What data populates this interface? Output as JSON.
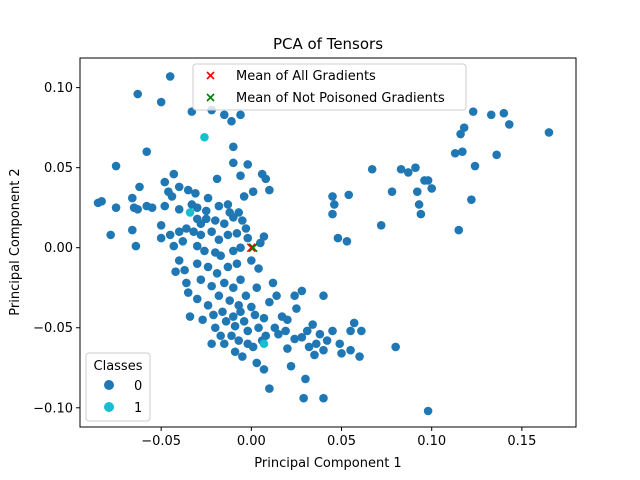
{
  "chart_data": {
    "type": "scatter",
    "title": "PCA of Tensors",
    "xlabel": "Principal Component 1",
    "ylabel": "Principal Component 2",
    "xlim": [
      -0.095,
      0.18
    ],
    "ylim": [
      -0.112,
      0.1185
    ],
    "xticks": [
      -0.05,
      0.0,
      0.05,
      0.1,
      0.15
    ],
    "xtick_labels": [
      "−0.05",
      "0.00",
      "0.05",
      "0.10",
      "0.15"
    ],
    "yticks": [
      -0.1,
      -0.05,
      0.0,
      0.05,
      0.1
    ],
    "ytick_labels": [
      "−0.10",
      "−0.05",
      "0.00",
      "0.05",
      "0.10"
    ],
    "grid": false,
    "colors": {
      "class0": "#1f77b4",
      "class1": "#17becf",
      "mean_all": "#ff0000",
      "mean_not_poisoned": "#008000"
    },
    "series": [
      {
        "name": "0",
        "points": [
          [
            -0.045,
            0.107
          ],
          [
            -0.063,
            0.096
          ],
          [
            -0.05,
            0.091
          ],
          [
            -0.033,
            0.085
          ],
          [
            -0.022,
            0.086
          ],
          [
            -0.015,
            0.083
          ],
          [
            -0.006,
            0.083
          ],
          [
            -0.011,
            0.079
          ],
          [
            -0.058,
            0.06
          ],
          [
            -0.01,
            0.063
          ],
          [
            -0.01,
            0.053
          ],
          [
            -0.002,
            0.052
          ],
          [
            -0.006,
            0.045
          ],
          [
            0.006,
            0.046
          ],
          [
            0.008,
            0.043
          ],
          [
            0.01,
            0.036
          ],
          [
            -0.019,
            0.043
          ],
          [
            -0.075,
            0.051
          ],
          [
            -0.062,
            0.038
          ],
          [
            -0.066,
            0.031
          ],
          [
            -0.048,
            0.041
          ],
          [
            -0.043,
            0.046
          ],
          [
            -0.046,
            0.035
          ],
          [
            -0.044,
            0.032
          ],
          [
            -0.035,
            0.036
          ],
          [
            -0.031,
            0.034
          ],
          [
            -0.04,
            0.038
          ],
          [
            -0.024,
            0.031
          ],
          [
            -0.013,
            0.027
          ],
          [
            -0.004,
            0.032
          ],
          [
            0.001,
            0.035
          ],
          [
            -0.085,
            0.028
          ],
          [
            -0.083,
            0.029
          ],
          [
            -0.065,
            0.025
          ],
          [
            -0.058,
            0.026
          ],
          [
            -0.063,
            0.024
          ],
          [
            -0.055,
            0.025
          ],
          [
            -0.075,
            0.025
          ],
          [
            -0.048,
            0.026
          ],
          [
            -0.04,
            0.024
          ],
          [
            -0.033,
            0.027
          ],
          [
            -0.03,
            0.025
          ],
          [
            -0.025,
            0.023
          ],
          [
            -0.018,
            0.026
          ],
          [
            -0.012,
            0.022
          ],
          [
            -0.007,
            0.022
          ],
          [
            -0.03,
            0.018
          ],
          [
            -0.028,
            0.015
          ],
          [
            -0.025,
            0.018
          ],
          [
            -0.02,
            0.017
          ],
          [
            -0.015,
            0.015
          ],
          [
            -0.01,
            0.019
          ],
          [
            -0.005,
            0.017
          ],
          [
            -0.003,
            0.012
          ],
          [
            -0.036,
            0.012
          ],
          [
            -0.032,
            0.01
          ],
          [
            -0.028,
            0.008
          ],
          [
            -0.022,
            0.01
          ],
          [
            -0.018,
            0.005
          ],
          [
            -0.013,
            0.008
          ],
          [
            -0.008,
            0.009
          ],
          [
            -0.002,
            0.006
          ],
          [
            -0.05,
            0.014
          ],
          [
            -0.045,
            0.008
          ],
          [
            -0.05,
            0.006
          ],
          [
            -0.04,
            0.01
          ],
          [
            -0.038,
            0.004
          ],
          [
            -0.043,
            0.001
          ],
          [
            -0.066,
            0.011
          ],
          [
            -0.078,
            0.008
          ],
          [
            -0.064,
            0.001
          ],
          [
            -0.03,
            0.001
          ],
          [
            -0.026,
            -0.002
          ],
          [
            -0.02,
            -0.003
          ],
          [
            -0.017,
            -0.005
          ],
          [
            -0.01,
            -0.002
          ],
          [
            -0.006,
            0.0
          ],
          [
            0.005,
            0.003
          ],
          [
            0.007,
            0.007
          ],
          [
            -0.04,
            -0.008
          ],
          [
            -0.037,
            -0.014
          ],
          [
            -0.03,
            -0.01
          ],
          [
            -0.024,
            -0.012
          ],
          [
            -0.019,
            -0.016
          ],
          [
            -0.013,
            -0.012
          ],
          [
            -0.008,
            -0.01
          ],
          [
            0.0,
            -0.008
          ],
          [
            -0.042,
            -0.015
          ],
          [
            -0.036,
            -0.022
          ],
          [
            -0.028,
            -0.02
          ],
          [
            -0.022,
            -0.024
          ],
          [
            -0.015,
            -0.022
          ],
          [
            -0.01,
            -0.025
          ],
          [
            -0.006,
            -0.02
          ],
          [
            0.004,
            -0.013
          ],
          [
            -0.035,
            -0.028
          ],
          [
            -0.03,
            -0.032
          ],
          [
            -0.024,
            -0.036
          ],
          [
            -0.018,
            -0.03
          ],
          [
            -0.012,
            -0.033
          ],
          [
            -0.007,
            -0.036
          ],
          [
            -0.003,
            -0.03
          ],
          [
            0.003,
            -0.025
          ],
          [
            -0.027,
            -0.045
          ],
          [
            -0.021,
            -0.042
          ],
          [
            -0.016,
            -0.04
          ],
          [
            -0.01,
            -0.043
          ],
          [
            -0.006,
            -0.04
          ],
          [
            0.0,
            -0.037
          ],
          [
            0.01,
            -0.034
          ],
          [
            0.012,
            -0.022
          ],
          [
            -0.034,
            -0.043
          ],
          [
            -0.02,
            -0.05
          ],
          [
            -0.014,
            -0.046
          ],
          [
            -0.009,
            -0.049
          ],
          [
            -0.004,
            -0.046
          ],
          [
            0.002,
            -0.042
          ],
          [
            0.007,
            -0.044
          ],
          [
            0.014,
            -0.03
          ],
          [
            -0.022,
            -0.06
          ],
          [
            -0.017,
            -0.055
          ],
          [
            -0.011,
            -0.055
          ],
          [
            -0.007,
            -0.058
          ],
          [
            -0.002,
            -0.052
          ],
          [
            0.004,
            -0.05
          ],
          [
            0.008,
            -0.055
          ],
          [
            -0.015,
            -0.06
          ],
          [
            -0.009,
            -0.065
          ],
          [
            -0.005,
            -0.068
          ],
          [
            0.001,
            -0.062
          ],
          [
            0.006,
            -0.058
          ],
          [
            0.013,
            -0.05
          ],
          [
            0.017,
            -0.043
          ],
          [
            0.003,
            -0.072
          ],
          [
            0.007,
            -0.076
          ],
          [
            0.01,
            -0.088
          ],
          [
            -0.002,
            -0.06
          ],
          [
            0.015,
            -0.054
          ],
          [
            0.019,
            -0.052
          ],
          [
            0.02,
            -0.045
          ],
          [
            0.024,
            -0.03
          ],
          [
            0.025,
            -0.038
          ],
          [
            0.028,
            -0.027
          ],
          [
            0.024,
            -0.057
          ],
          [
            0.02,
            -0.063
          ],
          [
            0.028,
            -0.056
          ],
          [
            0.031,
            -0.052
          ],
          [
            0.034,
            -0.048
          ],
          [
            0.036,
            -0.06
          ],
          [
            0.035,
            -0.067
          ],
          [
            0.032,
            -0.062
          ],
          [
            0.038,
            -0.054
          ],
          [
            0.04,
            -0.064
          ],
          [
            0.042,
            -0.058
          ],
          [
            0.045,
            -0.052
          ],
          [
            0.049,
            -0.06
          ],
          [
            0.05,
            -0.066
          ],
          [
            0.055,
            -0.064
          ],
          [
            0.055,
            -0.052
          ],
          [
            0.057,
            -0.047
          ],
          [
            0.061,
            -0.052
          ],
          [
            0.06,
            -0.068
          ],
          [
            0.022,
            -0.074
          ],
          [
            0.03,
            -0.082
          ],
          [
            0.029,
            -0.094
          ],
          [
            0.04,
            -0.094
          ],
          [
            0.04,
            -0.03
          ],
          [
            0.08,
            -0.062
          ],
          [
            0.098,
            -0.102
          ],
          [
            0.045,
            0.032
          ],
          [
            0.054,
            0.033
          ],
          [
            0.046,
            0.027
          ],
          [
            0.045,
            0.021
          ],
          [
            0.048,
            0.006
          ],
          [
            0.053,
            0.004
          ],
          [
            0.072,
            0.014
          ],
          [
            0.067,
            0.049
          ],
          [
            0.078,
            0.035
          ],
          [
            0.083,
            0.049
          ],
          [
            0.087,
            0.047
          ],
          [
            0.091,
            0.05
          ],
          [
            0.092,
            0.035
          ],
          [
            0.096,
            0.042
          ],
          [
            0.098,
            0.042
          ],
          [
            0.1,
            0.037
          ],
          [
            0.093,
            0.027
          ],
          [
            0.094,
            0.021
          ],
          [
            0.113,
            0.059
          ],
          [
            0.117,
            0.06
          ],
          [
            0.116,
            0.071
          ],
          [
            0.118,
            0.075
          ],
          [
            0.122,
            0.03
          ],
          [
            0.124,
            0.051
          ],
          [
            0.115,
            0.011
          ],
          [
            0.123,
            0.085
          ],
          [
            0.133,
            0.083
          ],
          [
            0.14,
            0.084
          ],
          [
            0.143,
            0.077
          ],
          [
            0.136,
            0.058
          ],
          [
            0.165,
            0.072
          ]
        ]
      },
      {
        "name": "1",
        "points": [
          [
            -0.026,
            0.069
          ],
          [
            -0.034,
            0.022
          ],
          [
            0.007,
            -0.06
          ]
        ]
      },
      {
        "name": "Mean of All Gradients",
        "marker": "x",
        "points": [
          [
            0.0,
            0.0
          ]
        ]
      },
      {
        "name": "Mean of Not Poisoned Gradients",
        "marker": "x",
        "points": [
          [
            0.001,
            0.0
          ]
        ]
      }
    ],
    "legends": [
      {
        "placement": "upper-center",
        "entries": [
          "Mean of All Gradients",
          "Mean of Not Poisoned Gradients"
        ]
      },
      {
        "placement": "lower-left",
        "title": "Classes",
        "entries": [
          "0",
          "1"
        ]
      }
    ]
  }
}
